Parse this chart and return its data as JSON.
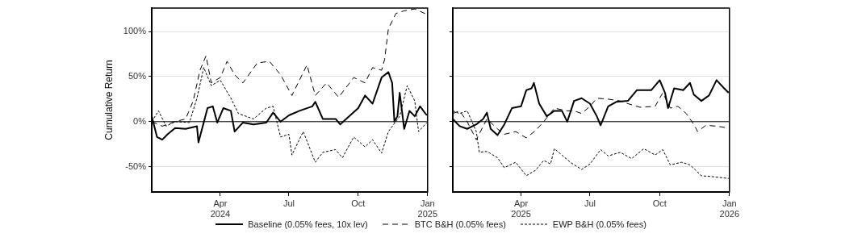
{
  "chart_data": [
    {
      "type": "line",
      "ylabel": "Cumulative Return",
      "xlim": [
        "2024-01-01",
        "2025-01-01"
      ],
      "ylim": [
        -78,
        126
      ],
      "xticks": [
        {
          "value": "2024-04-01",
          "label": "Apr\n2024"
        },
        {
          "value": "2024-07-01",
          "label": "Jul"
        },
        {
          "value": "2024-10-01",
          "label": "Oct"
        },
        {
          "value": "2025-01-01",
          "label": "Jan\n2025"
        }
      ],
      "yticks": [
        {
          "value": -50,
          "label": "-50%"
        },
        {
          "value": 0,
          "label": "0%"
        },
        {
          "value": 50,
          "label": "50%"
        },
        {
          "value": 100,
          "label": "100%"
        }
      ],
      "grid": "y",
      "legend": "bottom",
      "ref_lines": [
        {
          "axis": "y",
          "value": 0,
          "color": "#000000"
        }
      ],
      "series": [
        {
          "name": "Baseline (0.05% fees, 10x lev)",
          "color": "#000000",
          "line_style": "solid",
          "x": [
            "2024-01-01",
            "2024-01-08",
            "2024-01-15",
            "2024-01-22",
            "2024-02-01",
            "2024-02-15",
            "2024-03-01",
            "2024-03-03",
            "2024-03-15",
            "2024-03-22",
            "2024-03-28",
            "2024-04-05",
            "2024-04-15",
            "2024-04-20",
            "2024-05-01",
            "2024-05-15",
            "2024-06-01",
            "2024-06-10",
            "2024-06-20",
            "2024-07-01",
            "2024-07-15",
            "2024-08-01",
            "2024-08-05",
            "2024-08-15",
            "2024-09-01",
            "2024-09-07",
            "2024-09-15",
            "2024-10-01",
            "2024-10-10",
            "2024-10-20",
            "2024-11-01",
            "2024-11-10",
            "2024-11-15",
            "2024-11-18",
            "2024-11-22",
            "2024-11-25",
            "2024-12-01",
            "2024-12-08",
            "2024-12-15",
            "2024-12-22",
            "2024-12-31"
          ],
          "values": [
            6,
            -17,
            -20,
            -14,
            -7,
            -8,
            -5,
            -23,
            15,
            17,
            -1,
            15,
            12,
            -11,
            -1,
            -3,
            -1,
            10,
            0,
            7,
            12,
            17,
            22,
            3,
            3,
            -3,
            3,
            15,
            29,
            20,
            49,
            55,
            43,
            0,
            6,
            32,
            -8,
            12,
            6,
            17,
            7
          ]
        },
        {
          "name": "BTC B&H (0.05% fees)",
          "color": "#000000",
          "line_style": "dashed",
          "x": [
            "2024-01-01",
            "2024-01-15",
            "2024-02-01",
            "2024-02-15",
            "2024-02-25",
            "2024-03-05",
            "2024-03-13",
            "2024-03-20",
            "2024-04-01",
            "2024-04-10",
            "2024-04-20",
            "2024-05-01",
            "2024-05-20",
            "2024-06-05",
            "2024-06-20",
            "2024-07-05",
            "2024-07-25",
            "2024-08-05",
            "2024-08-20",
            "2024-09-05",
            "2024-09-25",
            "2024-10-10",
            "2024-10-20",
            "2024-11-01",
            "2024-11-05",
            "2024-11-10",
            "2024-11-20",
            "2024-12-01",
            "2024-12-15",
            "2024-12-31"
          ],
          "values": [
            0,
            -5,
            0,
            3,
            23,
            57,
            73,
            43,
            49,
            67,
            52,
            43,
            65,
            67,
            52,
            29,
            63,
            29,
            43,
            27,
            49,
            43,
            60,
            57,
            69,
            103,
            120,
            123,
            125,
            119
          ]
        },
        {
          "name": "EWP B&H (0.05% fees)",
          "color": "#000000",
          "line_style": "dotted",
          "x": [
            "2024-01-01",
            "2024-01-10",
            "2024-01-20",
            "2024-02-01",
            "2024-02-20",
            "2024-03-01",
            "2024-03-10",
            "2024-03-20",
            "2024-04-01",
            "2024-04-15",
            "2024-04-25",
            "2024-05-15",
            "2024-06-01",
            "2024-06-10",
            "2024-06-20",
            "2024-07-01",
            "2024-07-05",
            "2024-07-20",
            "2024-08-05",
            "2024-08-15",
            "2024-09-01",
            "2024-09-10",
            "2024-09-25",
            "2024-10-10",
            "2024-10-20",
            "2024-11-01",
            "2024-11-10",
            "2024-11-25",
            "2024-12-05",
            "2024-12-15",
            "2024-12-20",
            "2024-12-31"
          ],
          "values": [
            0,
            12,
            -5,
            0,
            -1,
            26,
            60,
            40,
            46,
            26,
            9,
            3,
            15,
            17,
            -17,
            -14,
            -37,
            -11,
            -45,
            -34,
            -31,
            -40,
            -17,
            -28,
            -20,
            -35,
            -11,
            6,
            40,
            23,
            -11,
            -1
          ]
        }
      ]
    },
    {
      "type": "line",
      "xlim": [
        "2025-01-01",
        "2026-01-01"
      ],
      "ylim": [
        -78,
        126
      ],
      "xticks": [
        {
          "value": "2025-04-01",
          "label": "Apr\n2025"
        },
        {
          "value": "2025-07-01",
          "label": "Jul"
        },
        {
          "value": "2025-10-01",
          "label": "Oct"
        },
        {
          "value": "2026-01-01",
          "label": "Jan\n2026"
        }
      ],
      "yticks": [
        -50,
        0,
        50,
        100
      ],
      "tick_labels": "x",
      "grid": "y",
      "ref_lines": [
        {
          "axis": "y",
          "value": 0,
          "color": "#000000"
        }
      ],
      "series": [
        {
          "color": "#000000",
          "line_style": "solid",
          "x": [
            "2025-01-01",
            "2025-01-10",
            "2025-01-20",
            "2025-02-01",
            "2025-02-10",
            "2025-02-15",
            "2025-02-20",
            "2025-03-01",
            "2025-03-10",
            "2025-03-20",
            "2025-04-01",
            "2025-04-08",
            "2025-04-15",
            "2025-04-18",
            "2025-04-25",
            "2025-05-05",
            "2025-05-15",
            "2025-05-25",
            "2025-06-01",
            "2025-06-10",
            "2025-06-20",
            "2025-07-01",
            "2025-07-10",
            "2025-07-15",
            "2025-07-25",
            "2025-08-05",
            "2025-08-20",
            "2025-09-01",
            "2025-09-20",
            "2025-10-01",
            "2025-10-08",
            "2025-10-12",
            "2025-10-20",
            "2025-11-01",
            "2025-11-10",
            "2025-11-15",
            "2025-11-25",
            "2025-12-05",
            "2025-12-15",
            "2025-12-25",
            "2025-12-31"
          ],
          "values": [
            3,
            -5,
            -8,
            -3,
            3,
            10,
            -8,
            -15,
            -3,
            15,
            17,
            35,
            37,
            43,
            20,
            6,
            12,
            12,
            0,
            23,
            26,
            20,
            6,
            -4,
            17,
            22,
            23,
            35,
            35,
            46,
            32,
            15,
            37,
            35,
            43,
            30,
            23,
            29,
            46,
            37,
            32
          ]
        },
        {
          "color": "#000000",
          "line_style": "dashed",
          "x": [
            "2025-01-01",
            "2025-01-10",
            "2025-01-20",
            "2025-02-01",
            "2025-02-15",
            "2025-03-01",
            "2025-03-10",
            "2025-03-25",
            "2025-04-08",
            "2025-04-20",
            "2025-05-01",
            "2025-05-15",
            "2025-06-01",
            "2025-06-10",
            "2025-06-20",
            "2025-07-01",
            "2025-07-10",
            "2025-07-25",
            "2025-08-10",
            "2025-08-20",
            "2025-09-05",
            "2025-09-25",
            "2025-10-05",
            "2025-10-15",
            "2025-10-25",
            "2025-11-05",
            "2025-11-15",
            "2025-11-20",
            "2025-12-01",
            "2025-12-15",
            "2025-12-31"
          ],
          "values": [
            9,
            12,
            0,
            -20,
            3,
            -8,
            -14,
            -11,
            -18,
            -10,
            0,
            15,
            12,
            12,
            9,
            17,
            26,
            25,
            23,
            20,
            16,
            17,
            32,
            15,
            17,
            9,
            -3,
            -11,
            -4,
            -5,
            -7
          ]
        },
        {
          "color": "#000000",
          "line_style": "dotted",
          "x": [
            "2025-01-01",
            "2025-01-10",
            "2025-01-20",
            "2025-02-01",
            "2025-02-05",
            "2025-02-15",
            "2025-03-01",
            "2025-03-10",
            "2025-03-25",
            "2025-04-08",
            "2025-04-20",
            "2025-05-01",
            "2025-05-10",
            "2025-05-15",
            "2025-05-25",
            "2025-06-05",
            "2025-06-20",
            "2025-07-01",
            "2025-07-15",
            "2025-07-25",
            "2025-08-10",
            "2025-08-25",
            "2025-09-10",
            "2025-09-25",
            "2025-10-05",
            "2025-10-15",
            "2025-10-30",
            "2025-11-10",
            "2025-11-25",
            "2025-12-10",
            "2025-12-31"
          ],
          "values": [
            12,
            9,
            12,
            -11,
            -34,
            -33,
            -40,
            -51,
            -45,
            -60,
            -54,
            -43,
            -47,
            -30,
            -37,
            -45,
            -53,
            -47,
            -31,
            -38,
            -34,
            -41,
            -30,
            -37,
            -31,
            -48,
            -45,
            -48,
            -60,
            -61,
            -63
          ]
        }
      ]
    }
  ]
}
